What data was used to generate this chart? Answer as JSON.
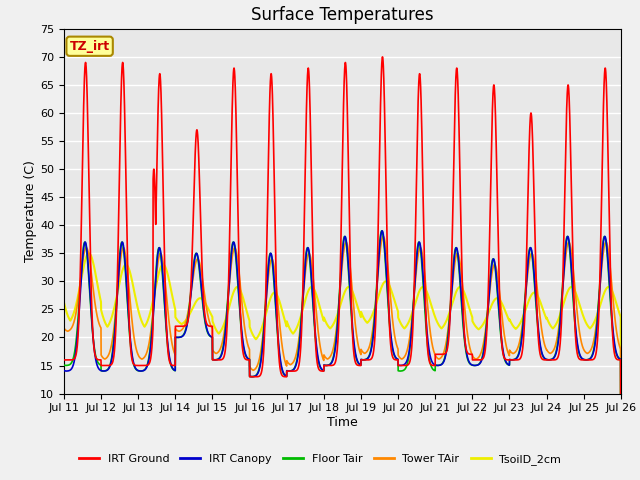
{
  "title": "Surface Temperatures",
  "xlabel": "Time",
  "ylabel": "Temperature (C)",
  "ylim": [
    10,
    75
  ],
  "yticks": [
    10,
    15,
    20,
    25,
    30,
    35,
    40,
    45,
    50,
    55,
    60,
    65,
    70,
    75
  ],
  "x_tick_labels": [
    "Jul 11",
    "Jul 12",
    "Jul 13",
    "Jul 14",
    "Jul 15",
    "Jul 16",
    "Jul 17",
    "Jul 18",
    "Jul 19",
    "Jul 20",
    "Jul 21",
    "Jul 22",
    "Jul 23",
    "Jul 24",
    "Jul 25",
    "Jul 26"
  ],
  "series": {
    "IRT Ground": {
      "color": "#ff0000",
      "lw": 1.2
    },
    "IRT Canopy": {
      "color": "#0000cc",
      "lw": 1.2
    },
    "Floor Tair": {
      "color": "#00bb00",
      "lw": 1.2
    },
    "Tower TAir": {
      "color": "#ff8800",
      "lw": 1.2
    },
    "TsoilD_2cm": {
      "color": "#eeee00",
      "lw": 1.5
    }
  },
  "annotation_text": "TZ_irt",
  "annotation_box_facecolor": "#ffff99",
  "annotation_box_edgecolor": "#aa8800",
  "plot_bg_color": "#e8e8e8",
  "grid_color": "#ffffff",
  "title_fontsize": 12,
  "label_fontsize": 9,
  "tick_fontsize": 8,
  "fig_facecolor": "#f0f0f0"
}
